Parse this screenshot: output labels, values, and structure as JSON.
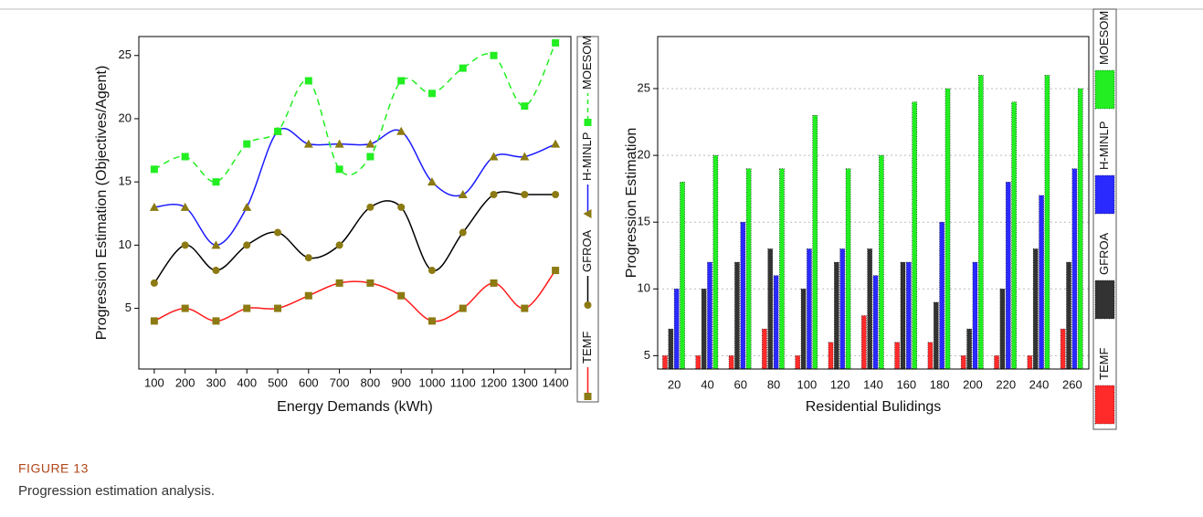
{
  "figure": {
    "label": "FIGURE 13",
    "caption": "Progression estimation analysis."
  },
  "chart_data": [
    {
      "type": "line",
      "y_label": "Progression Estimation (Objectives/Agent)",
      "x_label": "Energy Demands (kWh)",
      "x": [
        100,
        200,
        300,
        400,
        500,
        600,
        700,
        800,
        900,
        1000,
        1100,
        1200,
        1300,
        1400
      ],
      "xlim": [
        50,
        1450
      ],
      "xticks": [
        100,
        200,
        300,
        400,
        500,
        600,
        700,
        800,
        900,
        1000,
        1100,
        1200,
        1300,
        1400
      ],
      "ylim": [
        0.2,
        26.5
      ],
      "yticks": [
        5,
        10,
        15,
        20,
        25
      ],
      "smooth": true,
      "grid": false,
      "legend": "right",
      "series": [
        {
          "name": "TEMF",
          "color": "#ff1a1a",
          "marker": "square",
          "marker_color": "#8c7a12",
          "line_style": "solid",
          "values": [
            4,
            5,
            4,
            5,
            5,
            6,
            7,
            7,
            6,
            4,
            5,
            7,
            5,
            8
          ]
        },
        {
          "name": "GFROA",
          "color": "#000000",
          "marker": "circle",
          "marker_color": "#8c7a12",
          "line_style": "solid",
          "values": [
            7,
            10,
            8,
            10,
            11,
            9,
            10,
            13,
            13,
            8,
            11,
            14,
            14,
            14
          ]
        },
        {
          "name": "H-MINLP",
          "color": "#1a1aff",
          "marker": "triangle",
          "marker_color": "#8c7a12",
          "line_style": "solid",
          "values": [
            13,
            13,
            10,
            13,
            19,
            18,
            18,
            18,
            19,
            15,
            14,
            17,
            17,
            18
          ]
        },
        {
          "name": "MOESOM",
          "color": "#22ee22",
          "marker": "square",
          "marker_color": "#22ee22",
          "line_style": "dashed",
          "values": [
            16,
            17,
            15,
            18,
            19,
            23,
            16,
            17,
            23,
            22,
            24,
            25,
            21,
            26
          ]
        }
      ]
    },
    {
      "type": "bar",
      "y_label": "Progression Estimation",
      "x_label": "Residential Bulidings",
      "categories": [
        "20",
        "40",
        "60",
        "80",
        "100",
        "120",
        "140",
        "160",
        "180",
        "200",
        "220",
        "240",
        "260"
      ],
      "ylim": [
        4,
        28.9
      ],
      "yticks": [
        5,
        10,
        15,
        20,
        25
      ],
      "grid": true,
      "legend": "right",
      "series": [
        {
          "name": "TEMF",
          "color": "#ff2a2a",
          "values": [
            5,
            5,
            5,
            7,
            5,
            6,
            8,
            6,
            6,
            5,
            5,
            5,
            7
          ]
        },
        {
          "name": "GFROA",
          "color": "#333333",
          "values": [
            7,
            10,
            12,
            13,
            10,
            12,
            13,
            12,
            9,
            7,
            10,
            13,
            12
          ]
        },
        {
          "name": "H-MINLP",
          "color": "#2a2aff",
          "values": [
            10,
            12,
            15,
            11,
            13,
            13,
            11,
            12,
            15,
            12,
            18,
            17,
            19
          ]
        },
        {
          "name": "MOESOM",
          "color": "#22ee22",
          "values": [
            18,
            20,
            19,
            19,
            23,
            19,
            20,
            24,
            25,
            26,
            24,
            26,
            25
          ]
        }
      ]
    }
  ]
}
